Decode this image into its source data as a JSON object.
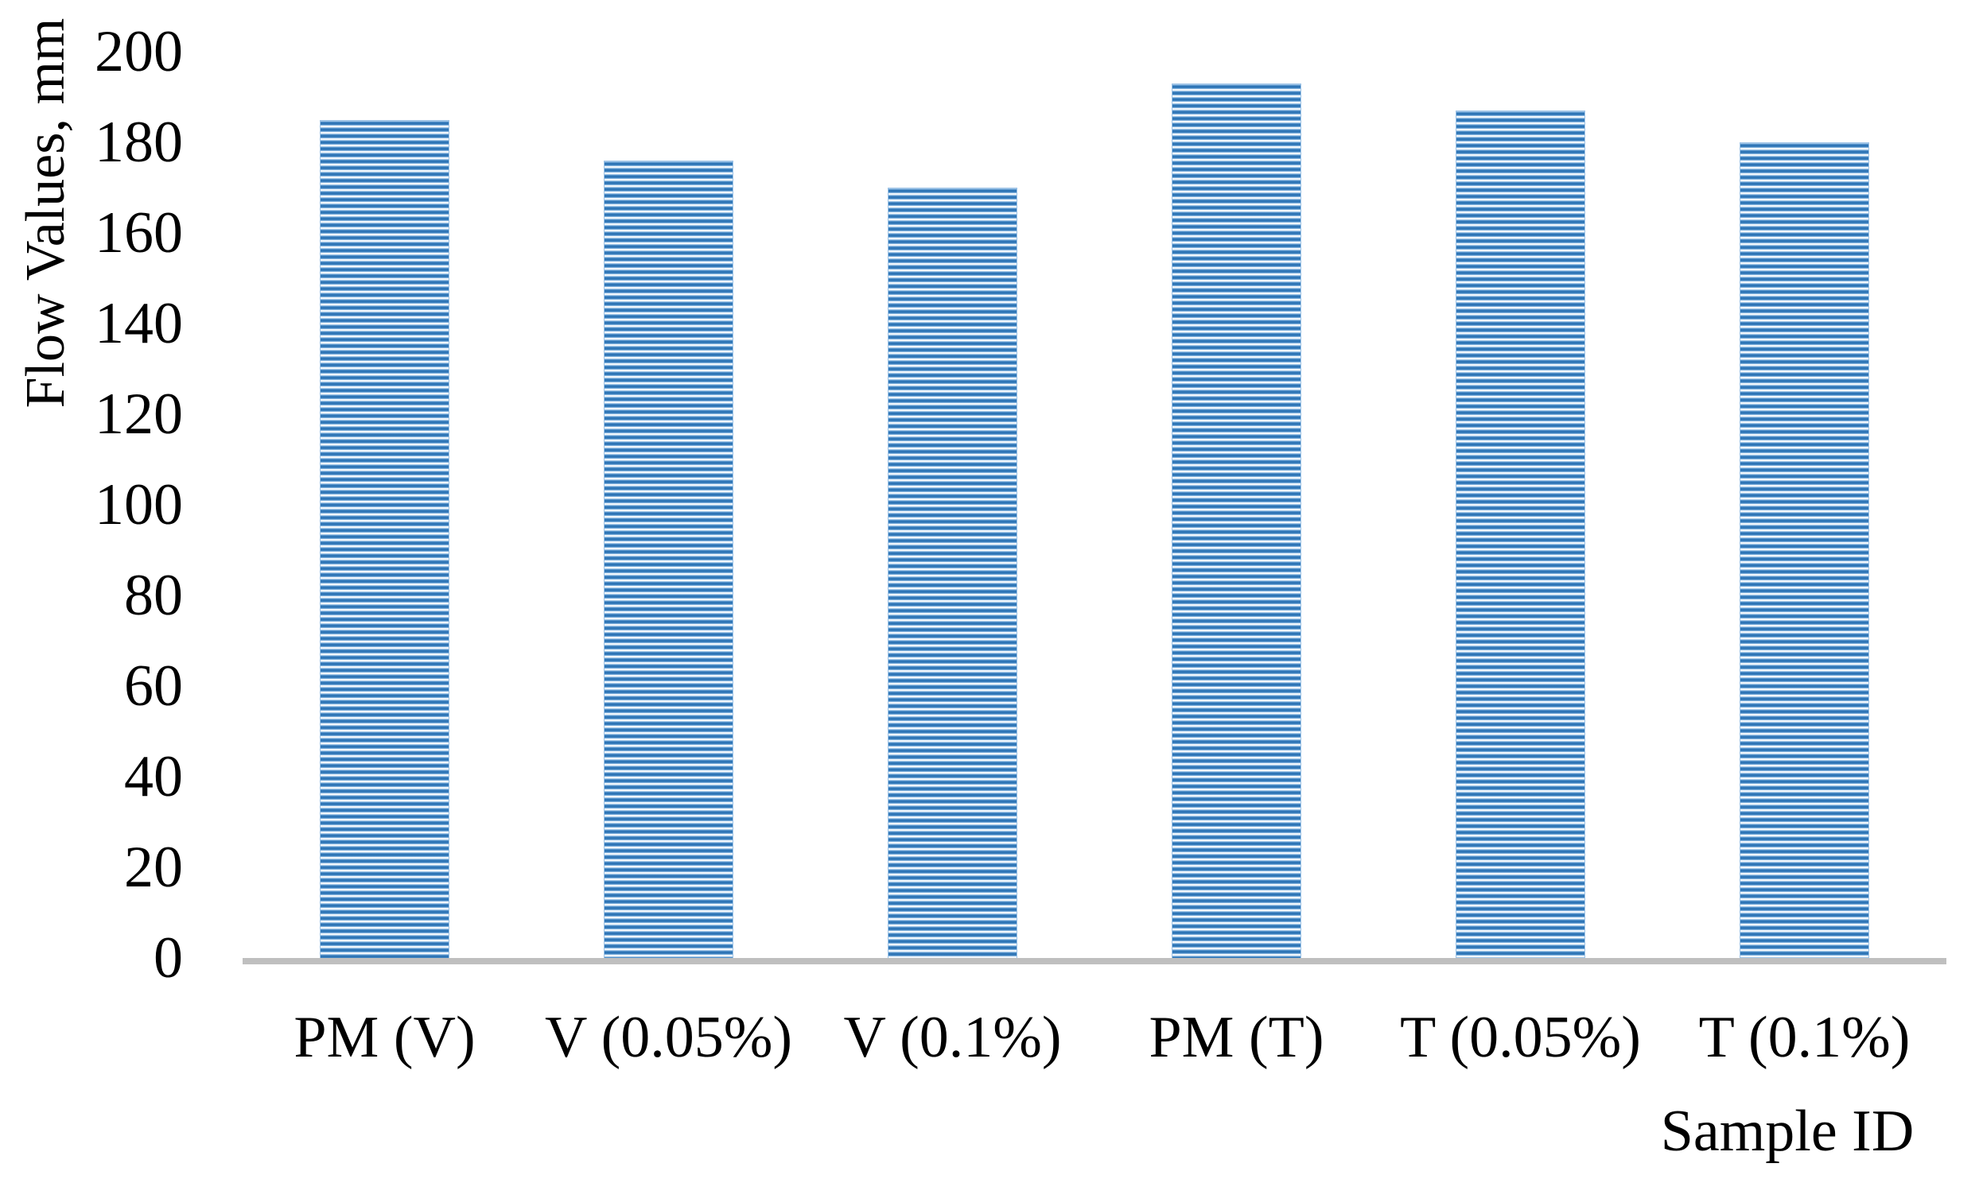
{
  "chart_data": {
    "type": "bar",
    "title": "",
    "categories": [
      "PM (V)",
      "V (0.05%)",
      "V (0.1%)",
      "PM (T)",
      "T (0.05%)",
      "T (0.1%)"
    ],
    "values": [
      185,
      176,
      170,
      193,
      187,
      180
    ],
    "xlabel": "Sample ID",
    "ylabel": "Flow Values, mm",
    "ylim": [
      0,
      200
    ],
    "ytick_step": 20,
    "ytick_labels": [
      "200",
      "180",
      "160",
      "140",
      "120",
      "100",
      "80",
      "60",
      "40",
      "20",
      "0"
    ],
    "grid": false,
    "legend_position": "none",
    "bar_pattern": "horizontal-stripes",
    "bar_stripe_dark": "#2E75B6",
    "bar_stripe_mid": "#5B9BD5",
    "bar_stripe_light": "#EAF3FB",
    "bar_edge_color": "#9DC3E6",
    "axis_line_color": "#BFBFBF",
    "text_color": "#000000"
  }
}
